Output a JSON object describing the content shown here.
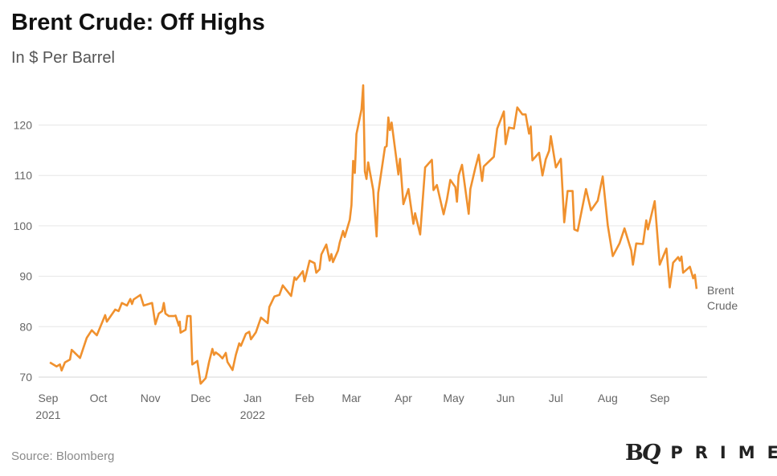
{
  "header": {
    "title": "Brent Crude: Off Highs",
    "subtitle": "In $ Per Barrel"
  },
  "footer": {
    "source": "Source: Bloomberg",
    "logo": "BQ PRIME"
  },
  "chart_data": {
    "type": "line",
    "title": "Brent Crude: Off Highs",
    "subtitle": "In $ Per Barrel",
    "xlabel": "",
    "ylabel": "",
    "ylim": [
      68,
      128
    ],
    "xlim": [
      0,
      387
    ],
    "grid": true,
    "yticks": [
      70,
      80,
      90,
      100,
      110,
      120
    ],
    "ytick_labels": [
      "70",
      "80",
      "90",
      "100",
      "110",
      "120"
    ],
    "xticks": [
      {
        "day": 0,
        "label": "Sep",
        "year": "2021"
      },
      {
        "day": 30,
        "label": "Oct",
        "year": ""
      },
      {
        "day": 61,
        "label": "Nov",
        "year": ""
      },
      {
        "day": 91,
        "label": "Dec",
        "year": ""
      },
      {
        "day": 122,
        "label": "Jan",
        "year": "2022"
      },
      {
        "day": 153,
        "label": "Feb",
        "year": ""
      },
      {
        "day": 181,
        "label": "Mar",
        "year": ""
      },
      {
        "day": 212,
        "label": "Apr",
        "year": ""
      },
      {
        "day": 242,
        "label": "May",
        "year": ""
      },
      {
        "day": 273,
        "label": "Jun",
        "year": ""
      },
      {
        "day": 303,
        "label": "Jul",
        "year": ""
      },
      {
        "day": 334,
        "label": "Aug",
        "year": ""
      },
      {
        "day": 365,
        "label": "Sep",
        "year": ""
      }
    ],
    "series": [
      {
        "name": "Brent Crude",
        "label_lines": [
          "Brent",
          "Crude"
        ],
        "color": "#F0912E",
        "points": [
          [
            1,
            72.9
          ],
          [
            5,
            72.1
          ],
          [
            7,
            72.5
          ],
          [
            8,
            71.3
          ],
          [
            10,
            72.9
          ],
          [
            13,
            73.5
          ],
          [
            14,
            75.4
          ],
          [
            19,
            73.8
          ],
          [
            23,
            77.8
          ],
          [
            26,
            79.3
          ],
          [
            29,
            78.3
          ],
          [
            34,
            82.3
          ],
          [
            35,
            81.0
          ],
          [
            40,
            83.4
          ],
          [
            42,
            83.1
          ],
          [
            44,
            84.7
          ],
          [
            47,
            84.2
          ],
          [
            49,
            85.5
          ],
          [
            50,
            84.5
          ],
          [
            51,
            85.4
          ],
          [
            55,
            86.3
          ],
          [
            57,
            84.2
          ],
          [
            62,
            84.7
          ],
          [
            64,
            80.5
          ],
          [
            66,
            82.6
          ],
          [
            68,
            83.1
          ],
          [
            69,
            84.7
          ],
          [
            70,
            82.6
          ],
          [
            72,
            82.1
          ],
          [
            75,
            82.1
          ],
          [
            76,
            82.2
          ],
          [
            78,
            80.2
          ],
          [
            78.5,
            81.0
          ],
          [
            79,
            78.8
          ],
          [
            82,
            79.4
          ],
          [
            83,
            82.1
          ],
          [
            85,
            82.1
          ],
          [
            86,
            72.5
          ],
          [
            89,
            73.2
          ],
          [
            91,
            68.7
          ],
          [
            94,
            69.8
          ],
          [
            96,
            73.0
          ],
          [
            98,
            75.6
          ],
          [
            99,
            74.4
          ],
          [
            100,
            74.9
          ],
          [
            102,
            74.4
          ],
          [
            104,
            73.7
          ],
          [
            106,
            74.8
          ],
          [
            107,
            73.0
          ],
          [
            110,
            71.4
          ],
          [
            112,
            74.4
          ],
          [
            114,
            76.7
          ],
          [
            115,
            76.2
          ],
          [
            118,
            78.6
          ],
          [
            120,
            79.0
          ],
          [
            121,
            77.5
          ],
          [
            124,
            78.9
          ],
          [
            127,
            81.8
          ],
          [
            131,
            80.7
          ],
          [
            132,
            83.9
          ],
          [
            133,
            84.6
          ],
          [
            135,
            86.0
          ],
          [
            138,
            86.3
          ],
          [
            140,
            88.2
          ],
          [
            145,
            86.1
          ],
          [
            147,
            89.8
          ],
          [
            148,
            89.3
          ],
          [
            152,
            91.0
          ],
          [
            153,
            89.0
          ],
          [
            156,
            93.1
          ],
          [
            159,
            92.6
          ],
          [
            160,
            90.7
          ],
          [
            162,
            91.4
          ],
          [
            163,
            94.3
          ],
          [
            166,
            96.3
          ],
          [
            168,
            93.1
          ],
          [
            169,
            94.4
          ],
          [
            170,
            92.8
          ],
          [
            173,
            95.1
          ],
          [
            174,
            96.7
          ],
          [
            176,
            99.0
          ],
          [
            177,
            97.8
          ],
          [
            180,
            101.2
          ],
          [
            181,
            104.1
          ],
          [
            182,
            112.9
          ],
          [
            183,
            110.5
          ],
          [
            184,
            118.2
          ],
          [
            187,
            123.1
          ],
          [
            188,
            127.9
          ],
          [
            189,
            110.8
          ],
          [
            190,
            109.3
          ],
          [
            191,
            112.6
          ],
          [
            194,
            107.1
          ],
          [
            196,
            97.9
          ],
          [
            197,
            106.5
          ],
          [
            201,
            115.6
          ],
          [
            202,
            115.8
          ],
          [
            203,
            121.5
          ],
          [
            204,
            119.0
          ],
          [
            205,
            120.5
          ],
          [
            209,
            110.2
          ],
          [
            210,
            113.3
          ],
          [
            212,
            104.3
          ],
          [
            215,
            107.3
          ],
          [
            218,
            100.4
          ],
          [
            219,
            102.5
          ],
          [
            222,
            98.3
          ],
          [
            225,
            111.6
          ],
          [
            229,
            113.1
          ],
          [
            230,
            107.1
          ],
          [
            232,
            108.1
          ],
          [
            236,
            102.3
          ],
          [
            238,
            105.2
          ],
          [
            240,
            109.1
          ],
          [
            243,
            107.7
          ],
          [
            244,
            104.8
          ],
          [
            245,
            110.0
          ],
          [
            247,
            112.1
          ],
          [
            251,
            102.4
          ],
          [
            252,
            107.3
          ],
          [
            255,
            111.6
          ],
          [
            257,
            114.1
          ],
          [
            259,
            108.9
          ],
          [
            260,
            111.8
          ],
          [
            266,
            113.7
          ],
          [
            268,
            119.3
          ],
          [
            272,
            122.7
          ],
          [
            273,
            116.2
          ],
          [
            275,
            119.5
          ],
          [
            278,
            119.3
          ],
          [
            280,
            123.5
          ],
          [
            283,
            122.1
          ],
          [
            285,
            122.1
          ],
          [
            287,
            118.3
          ],
          [
            288,
            119.7
          ],
          [
            289,
            113.0
          ],
          [
            293,
            114.5
          ],
          [
            295,
            110.0
          ],
          [
            297,
            113.2
          ],
          [
            299,
            114.9
          ],
          [
            300,
            117.8
          ],
          [
            303,
            111.6
          ],
          [
            306,
            113.3
          ],
          [
            308,
            100.7
          ],
          [
            310,
            106.9
          ],
          [
            313,
            106.9
          ],
          [
            314,
            99.3
          ],
          [
            316,
            99.0
          ],
          [
            321,
            107.3
          ],
          [
            324,
            103.1
          ],
          [
            328,
            105.0
          ],
          [
            329,
            106.6
          ],
          [
            331,
            109.8
          ],
          [
            334,
            100.1
          ],
          [
            337,
            94.0
          ],
          [
            341,
            96.5
          ],
          [
            344,
            99.5
          ],
          [
            348,
            95.1
          ],
          [
            349,
            92.3
          ],
          [
            351,
            96.5
          ],
          [
            355,
            96.4
          ],
          [
            357,
            101.1
          ],
          [
            358,
            99.3
          ],
          [
            362,
            104.9
          ],
          [
            365,
            92.3
          ],
          [
            369,
            95.5
          ],
          [
            371,
            87.8
          ],
          [
            373,
            92.7
          ],
          [
            376,
            93.8
          ],
          [
            377,
            93.1
          ],
          [
            378,
            93.9
          ],
          [
            379,
            90.7
          ],
          [
            383,
            91.9
          ],
          [
            385,
            89.6
          ],
          [
            386,
            90.3
          ],
          [
            387,
            87.5
          ]
        ]
      }
    ]
  }
}
